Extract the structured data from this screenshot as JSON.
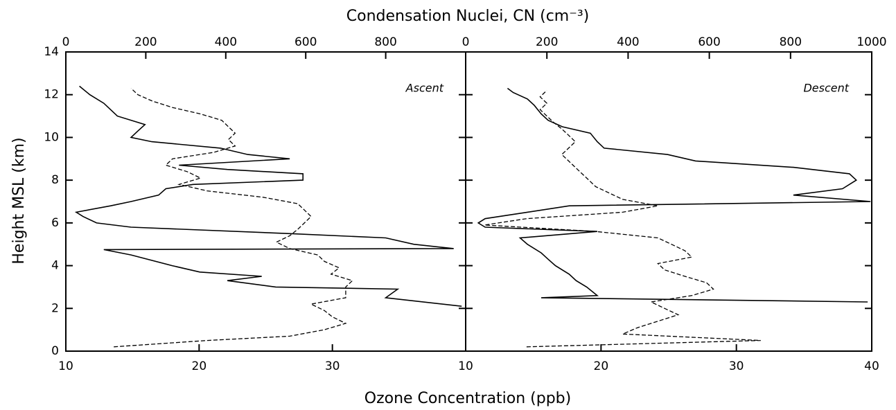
{
  "chart_data": [
    {
      "type": "line",
      "annotation": "Ascent",
      "ylabel": "Height MSL (km)",
      "xlabel": "Ozone Concentration (ppb)",
      "x2label": "Condensation Nuclei, CN (cm⁻³)",
      "xlim": [
        10,
        40
      ],
      "xticks": [
        10,
        20,
        30
      ],
      "x2lim": [
        0,
        1000
      ],
      "x2ticks": [
        0,
        200,
        400,
        600,
        800
      ],
      "ylim": [
        0,
        14
      ],
      "yticks": [
        0,
        2,
        4,
        6,
        8,
        10,
        12,
        14
      ],
      "series": [
        {
          "color": "#000000",
          "style": "solid",
          "axis": "x2",
          "y": [
            2.1,
            2.5,
            2.9,
            3.0,
            3.3,
            3.5,
            3.7,
            4.0,
            4.5,
            4.75,
            4.8,
            5.0,
            5.3,
            5.5,
            5.8,
            6.0,
            6.3,
            6.5,
            6.8,
            7.0,
            7.3,
            7.6,
            7.8,
            8.0,
            8.3,
            8.5,
            8.7,
            9.0,
            9.2,
            9.5,
            9.8,
            10.0,
            10.3,
            10.6,
            11.0,
            11.3,
            11.6,
            12.0,
            12.4
          ],
          "values": [
            990,
            800,
            830,
            525,
            404,
            490,
            335,
            266,
            163,
            95,
            970,
            870,
            800,
            560,
            163,
            77,
            43,
            26,
            112,
            163,
            232,
            250,
            318,
            593,
            593,
            404,
            283,
            560,
            455,
            387,
            215,
            163,
            180,
            198,
            129,
            112,
            95,
            60,
            34
          ]
        },
        {
          "color": "#000000",
          "style": "dashed",
          "axis": "x",
          "y": [
            0.2,
            0.5,
            0.7,
            1.0,
            1.3,
            1.6,
            1.9,
            2.2,
            2.5,
            3.0,
            3.3,
            3.6,
            3.9,
            4.2,
            4.5,
            4.8,
            5.1,
            5.4,
            5.7,
            6.0,
            6.3,
            6.6,
            6.9,
            7.2,
            7.5,
            7.8,
            8.1,
            8.4,
            8.7,
            9.0,
            9.3,
            9.6,
            9.9,
            10.2,
            10.5,
            10.8,
            11.1,
            11.4,
            11.7,
            12.0,
            12.3
          ],
          "values": [
            13.6,
            20.6,
            26.8,
            29.4,
            31,
            30,
            29.4,
            28.4,
            31,
            31,
            31.5,
            29.9,
            30.5,
            29.4,
            28.9,
            26.8,
            25.8,
            26.8,
            27.4,
            27.9,
            28.4,
            27.9,
            27.4,
            24.8,
            20.6,
            18.5,
            20.1,
            19.1,
            17.5,
            18,
            21.1,
            22.7,
            22.2,
            22.7,
            22.2,
            21.7,
            20.1,
            18,
            16.5,
            15.4,
            14.9
          ]
        }
      ]
    },
    {
      "type": "line",
      "annotation": "Descent",
      "xlim": [
        10,
        40
      ],
      "xticks": [
        10,
        20,
        30,
        40
      ],
      "x2lim": [
        0,
        1000
      ],
      "x2ticks": [
        0,
        200,
        400,
        600,
        800,
        1000
      ],
      "ylim": [
        0,
        14
      ],
      "series": [
        {
          "color": "#000000",
          "style": "solid",
          "axis": "x2",
          "y": [
            2.3,
            2.5,
            2.6,
            3.0,
            3.3,
            3.6,
            4.0,
            4.3,
            4.6,
            5.0,
            5.3,
            5.6,
            5.8,
            6.0,
            6.2,
            6.5,
            6.8,
            7.0,
            7.3,
            7.6,
            8.0,
            8.3,
            8.6,
            8.9,
            9.2,
            9.5,
            9.8,
            10.2,
            10.5,
            10.8,
            11.1,
            11.5,
            11.8,
            12.1,
            12.3
          ],
          "values": [
            990,
            186,
            324,
            298,
            272,
            255,
            221,
            203,
            186,
            152,
            134,
            324,
            48,
            31,
            48,
            152,
            255,
            997,
            807,
            928,
            962,
            945,
            807,
            566,
            497,
            341,
            324,
            307,
            238,
            203,
            186,
            169,
            152,
            117,
            103
          ]
        },
        {
          "color": "#000000",
          "style": "dashed",
          "axis": "x",
          "y": [
            0.2,
            0.5,
            0.8,
            1.1,
            1.4,
            1.7,
            2.0,
            2.3,
            2.6,
            2.9,
            3.2,
            3.5,
            3.8,
            4.1,
            4.4,
            4.7,
            5.0,
            5.3,
            5.6,
            5.9,
            6.2,
            6.5,
            6.8,
            7.1,
            7.4,
            7.7,
            8.0,
            8.3,
            8.6,
            8.9,
            9.2,
            9.5,
            9.8,
            10.1,
            10.4,
            10.7,
            11.0,
            11.3,
            11.6,
            11.9,
            12.2
          ],
          "values": [
            14.5,
            31.8,
            21.6,
            22.7,
            24.2,
            25.7,
            24.7,
            23.7,
            26.7,
            28.3,
            27.8,
            26.2,
            24.7,
            24.2,
            26.7,
            26.2,
            25.2,
            24.2,
            19.6,
            11.4,
            14.5,
            21.6,
            24.2,
            21.6,
            20.6,
            19.6,
            19.1,
            18.6,
            18.1,
            17.6,
            17.1,
            17.6,
            18.1,
            17.6,
            17.1,
            16.5,
            16,
            15.5,
            16,
            15.5,
            16
          ]
        }
      ]
    }
  ]
}
